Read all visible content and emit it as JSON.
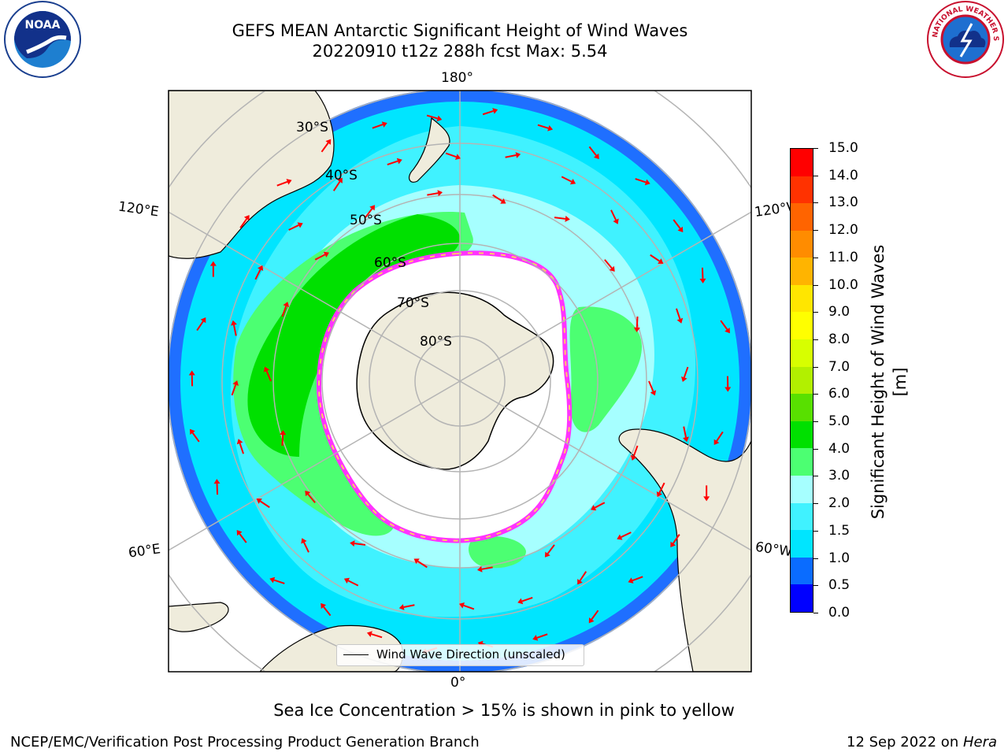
{
  "title": {
    "line1": "GEFS MEAN Antarctic Significant Height of Wind Waves",
    "line2": "20220910 t12z 288h fcst   Max: 5.54"
  },
  "map": {
    "projection": "south-polar-stereographic",
    "lon_labels": {
      "top": "180°",
      "bottom": "0°",
      "upper_left": "120°E",
      "lower_left": "60°E",
      "upper_right": "120°W",
      "lower_right": "60°W"
    },
    "lat_labels": [
      "30°S",
      "40°S",
      "50°S",
      "60°S",
      "70°S",
      "80°S"
    ],
    "legend_label": "Wind Wave Direction (unscaled)",
    "arrow_color": "#ff0000",
    "land_color": "#efecdc",
    "sea_ice_edge_colors": [
      "#ff33ff",
      "#ffcc66"
    ]
  },
  "colorbar": {
    "label": "Significant Height of Wind Waves [m]",
    "levels": [
      "0.0",
      "0.5",
      "1.0",
      "1.5",
      "2.0",
      "3.0",
      "4.0",
      "5.0",
      "6.0",
      "7.0",
      "8.0",
      "9.0",
      "10.0",
      "11.0",
      "12.0",
      "13.0",
      "14.0",
      "15.0"
    ],
    "colors": [
      "#0000ff",
      "#0a6cff",
      "#00e5ff",
      "#40f2ff",
      "#a6ffff",
      "#4cff72",
      "#00e000",
      "#58e000",
      "#b2f000",
      "#d7ff00",
      "#ffff00",
      "#ffe600",
      "#ffb400",
      "#ff8c00",
      "#ff6400",
      "#ff3200",
      "#ff0000"
    ]
  },
  "subtitle": "Sea Ice Concentration > 15% is shown in pink to yellow",
  "footer": {
    "left": "NCEP/EMC/Verification Post Processing Product Generation Branch",
    "right_date": "12 Sep 2022 on ",
    "right_host": "Hera"
  },
  "logos": {
    "left_text": "NOAA",
    "right_text": "NATIONAL WEATHER SERVICE"
  }
}
